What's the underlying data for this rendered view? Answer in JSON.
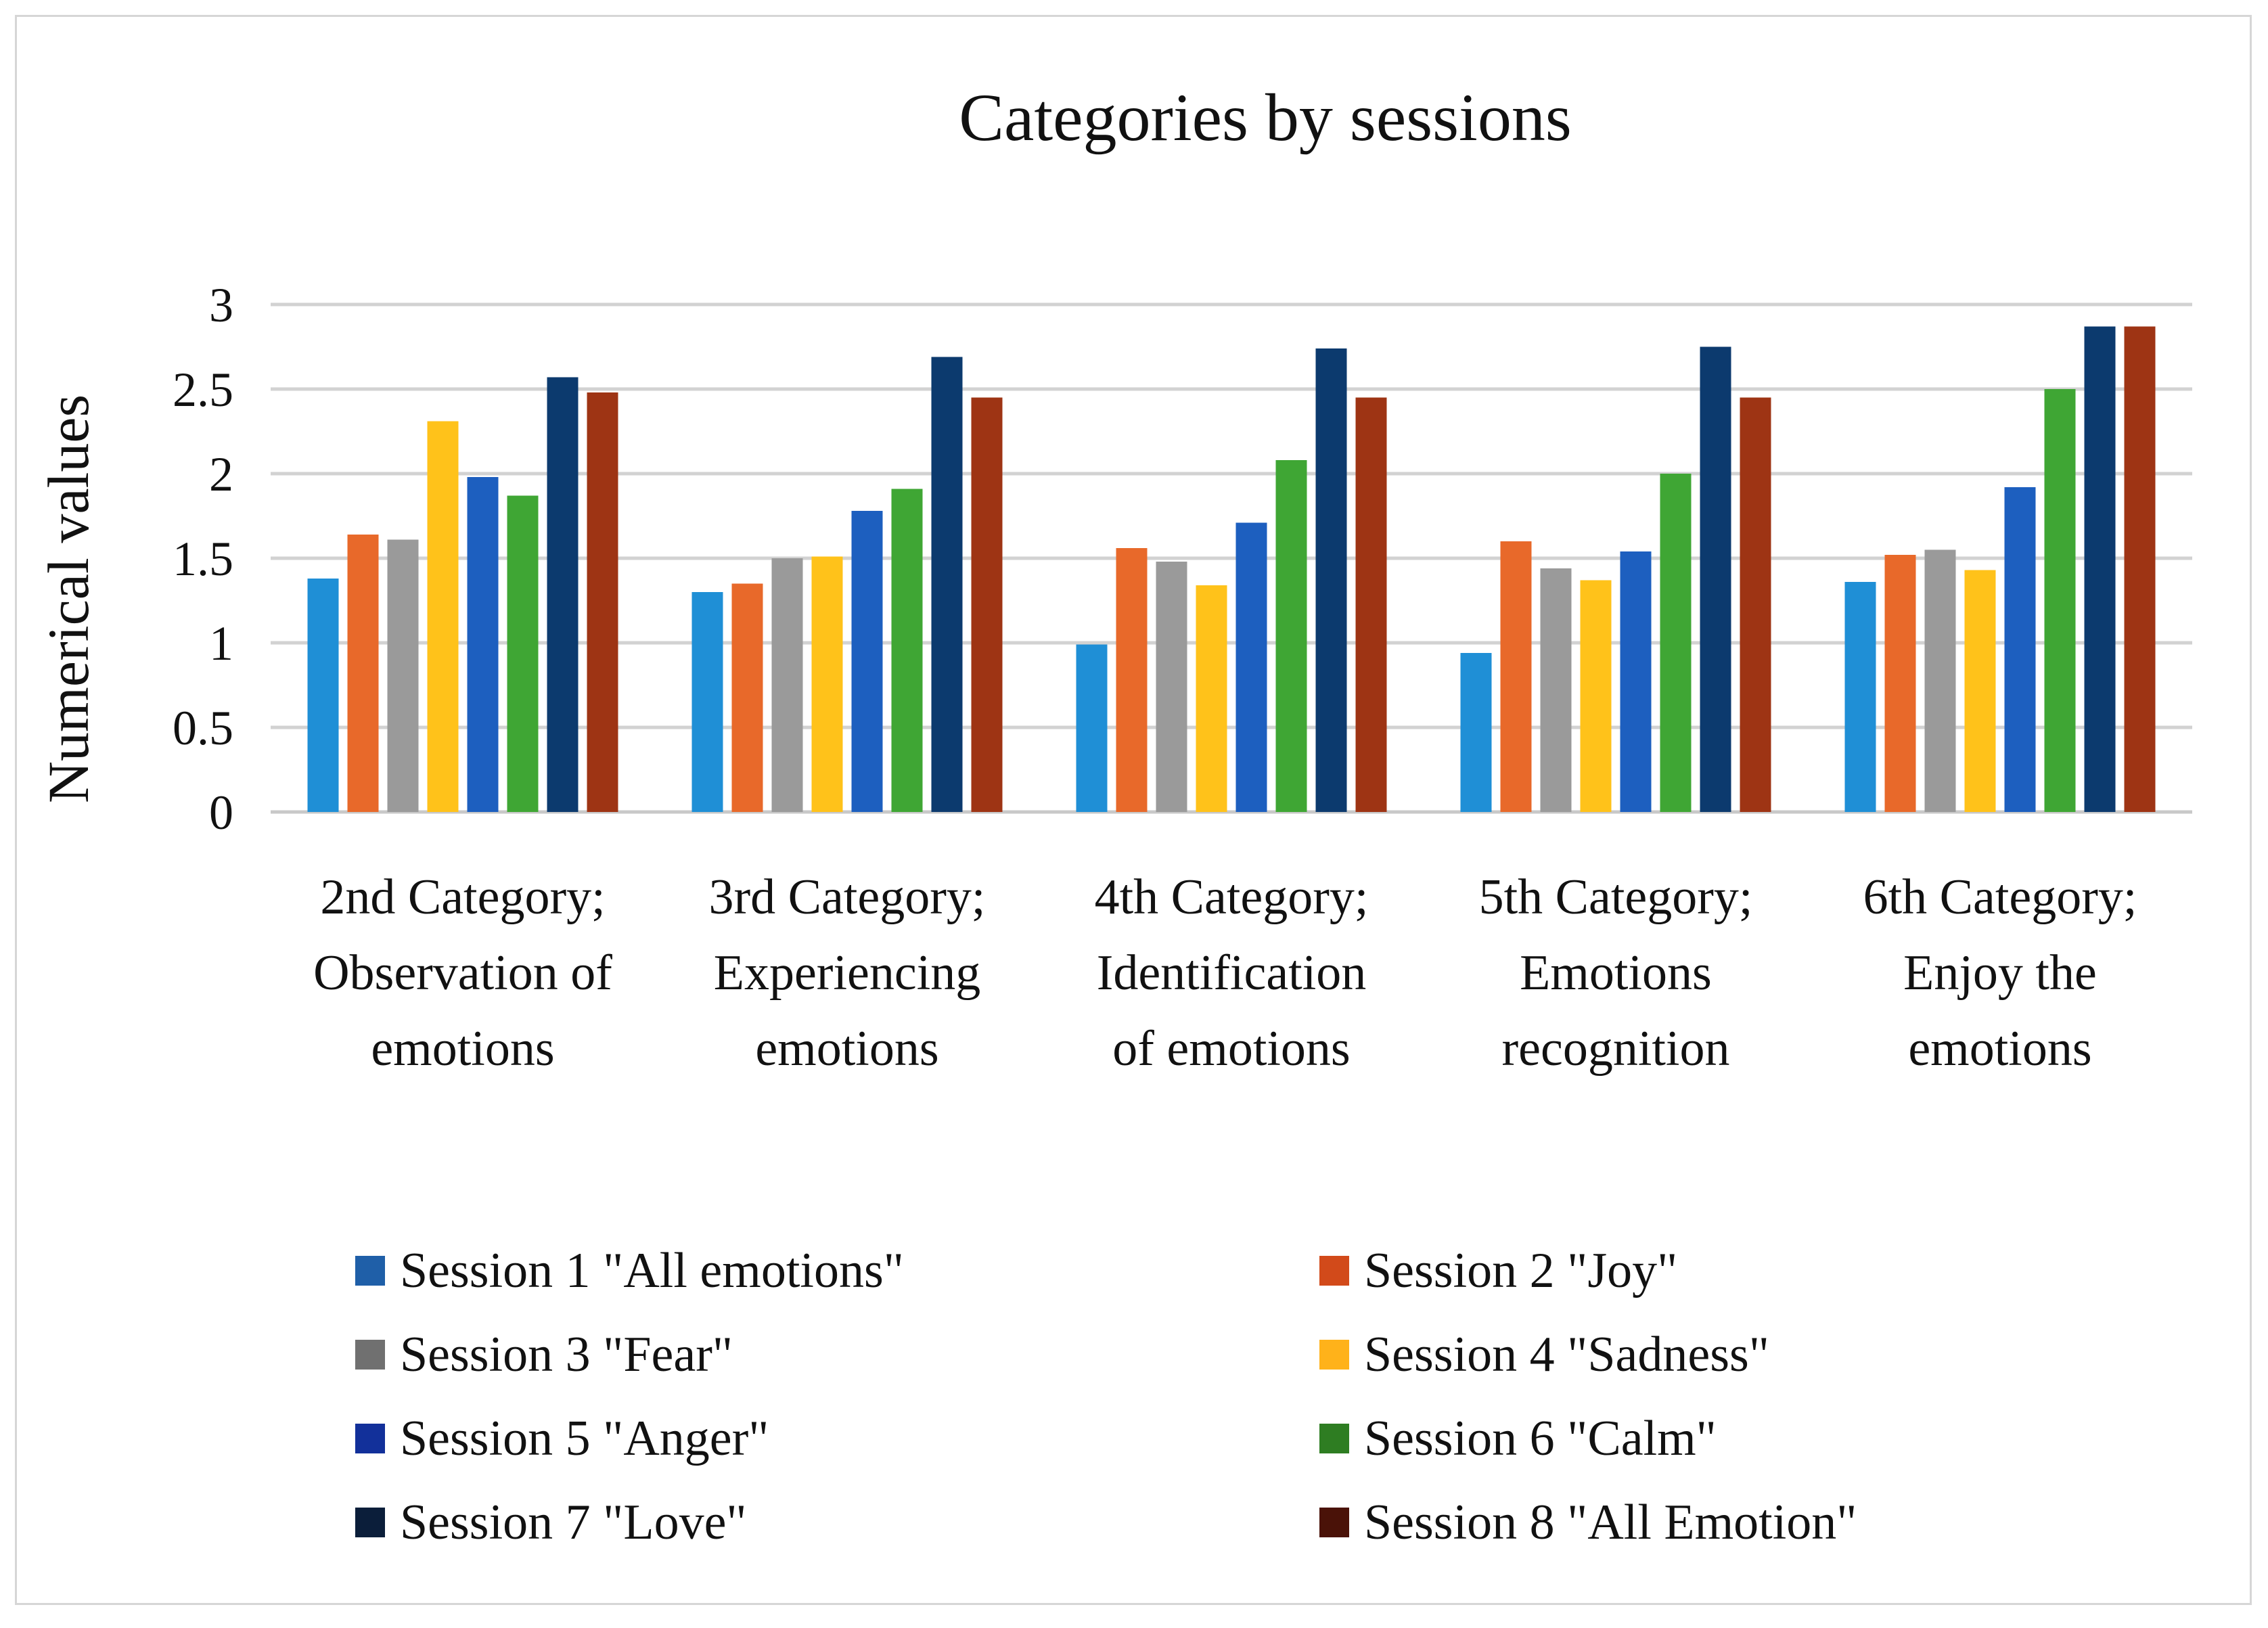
{
  "chart_data": {
    "type": "bar",
    "title": "Categories by sessions",
    "xlabel": "",
    "ylabel": "Numerical values",
    "ylim": [
      0,
      3
    ],
    "yticks": [
      "0",
      "0.5",
      "1",
      "1.5",
      "2",
      "2.5",
      "3"
    ],
    "grid": true,
    "legend_position": "bottom",
    "categories": [
      [
        "2nd Category;",
        "Observation of",
        "emotions"
      ],
      [
        "3rd Category;",
        "Experiencing",
        "emotions"
      ],
      [
        "4th Category;",
        "Identification",
        "of emotions"
      ],
      [
        "5th Category;",
        "Emotions",
        "recognition"
      ],
      [
        "6th Category;",
        "Enjoy the",
        "emotions"
      ]
    ],
    "series": [
      {
        "name": "Session 1 \"All emotions\"",
        "color": "#1f8fd6",
        "values": [
          1.38,
          1.3,
          0.99,
          0.94,
          1.36
        ]
      },
      {
        "name": "Session 2 \"Joy\"",
        "color": "#e8692a",
        "values": [
          1.64,
          1.35,
          1.56,
          1.6,
          1.52
        ]
      },
      {
        "name": "Session 3 \"Fear\"",
        "color": "#9a9a9a",
        "values": [
          1.61,
          1.5,
          1.48,
          1.44,
          1.55
        ]
      },
      {
        "name": "Session 4 \"Sadness\"",
        "color": "#ffc21a",
        "values": [
          2.31,
          1.51,
          1.34,
          1.37,
          1.43
        ]
      },
      {
        "name": "Session 5 \"Anger\"",
        "color": "#1d5fbf",
        "values": [
          1.98,
          1.78,
          1.71,
          1.54,
          1.92
        ]
      },
      {
        "name": "Session 6 \"Calm\"",
        "color": "#3fa634",
        "values": [
          1.87,
          1.91,
          2.08,
          2.0,
          2.5
        ]
      },
      {
        "name": "Session 7 \"Love\"",
        "color": "#0c3a6e",
        "values": [
          2.57,
          2.69,
          2.74,
          2.75,
          2.87
        ]
      },
      {
        "name": "Session 8 \"All Emotion\"",
        "color": "#9e3414",
        "values": [
          2.48,
          2.45,
          2.45,
          2.45,
          2.87
        ]
      }
    ]
  },
  "legend_swatch_colors": [
    "#1f5fa8",
    "#d24a1a",
    "#707070",
    "#ffb21a",
    "#12309a",
    "#2e7d22",
    "#0b1e3a",
    "#4a1208"
  ]
}
